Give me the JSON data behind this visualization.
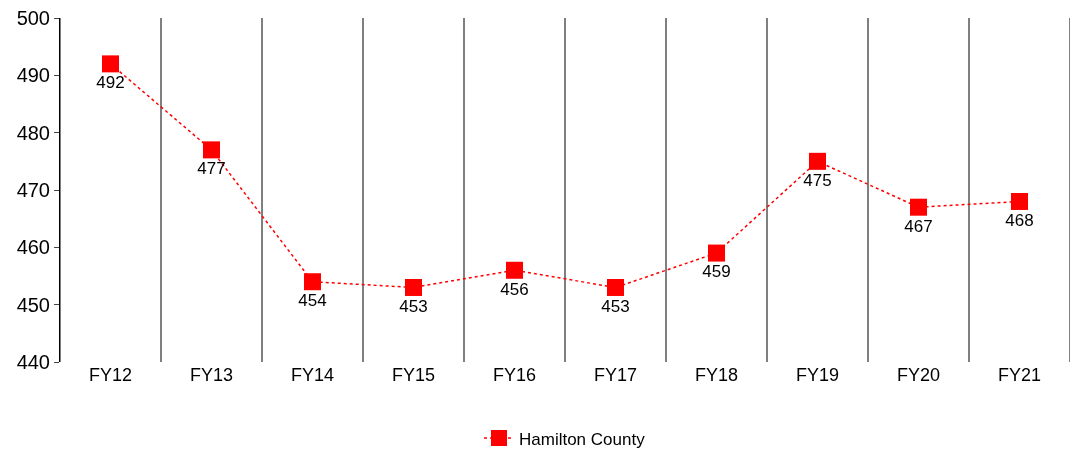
{
  "chart_data": {
    "type": "line",
    "categories": [
      "FY12",
      "FY13",
      "FY14",
      "FY15",
      "FY16",
      "FY17",
      "FY18",
      "FY19",
      "FY20",
      "FY21"
    ],
    "series": [
      {
        "name": "Hamilton County",
        "color": "#ff0000",
        "values": [
          492,
          477,
          454,
          453,
          456,
          453,
          459,
          475,
          467,
          468
        ]
      }
    ],
    "ylim": [
      440,
      500
    ],
    "yticks": [
      440,
      450,
      460,
      470,
      480,
      490,
      500
    ],
    "grid": "x",
    "legend": "bottom",
    "marker": "square",
    "line_style": "dotted",
    "data_labels": true
  }
}
